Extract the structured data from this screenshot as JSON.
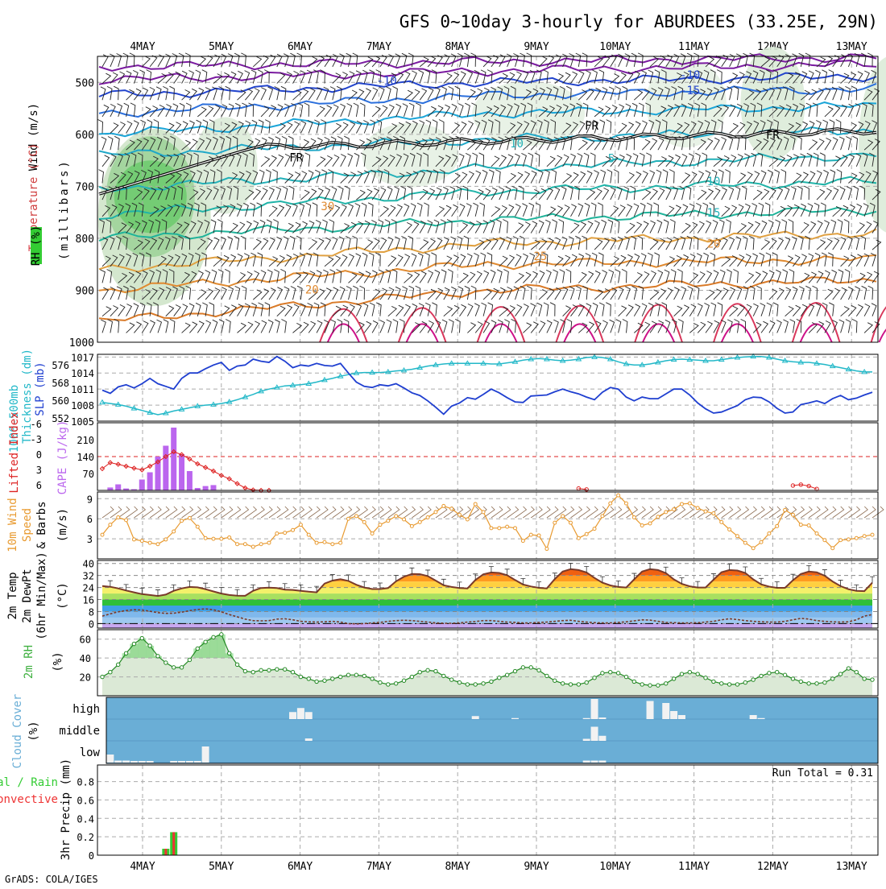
{
  "title": "GFS 0~10day 3-hourly for ABURDEES (33.25E, 29N)",
  "footer": "GrADS: COLA/IGES",
  "days": [
    "4MAY",
    "5MAY",
    "6MAY",
    "7MAY",
    "8MAY",
    "9MAY",
    "10MAY",
    "11MAY",
    "12MAY",
    "13MAY"
  ],
  "colors": {
    "slp": "#1f3fd0",
    "thickness": "#22b8c8",
    "lifted": "#dd2222",
    "cape": "#bb66ee",
    "wind10": "#e89a30",
    "temp": "#7a3a2a",
    "dewpt": "#7a3a2a",
    "rh2m": "#3fb040",
    "cloud_bg": "#6aaed6",
    "rain_total": "#33cc33",
    "rain_conv": "#ee3333"
  },
  "chart_data": [
    {
      "panel": "upper_air",
      "type": "contour",
      "ylabel": "Wind (m/s)  Temperature (°C)  RH (%)",
      "yunit": "(millibars)",
      "yticks": [
        "500",
        "600",
        "700",
        "800",
        "900",
        "1000"
      ],
      "ylim": [
        1000,
        450
      ],
      "contour_labels": [
        {
          "text": "-10",
          "day": 3.1,
          "p": 504
        },
        {
          "text": "-10",
          "day": 6.95,
          "p": 493
        },
        {
          "text": "-15",
          "day": 6.95,
          "p": 523
        },
        {
          "text": "FR",
          "day": 5.7,
          "p": 591
        },
        {
          "text": "FR",
          "day": 8.0,
          "p": 609
        },
        {
          "text": "FR",
          "day": 1.95,
          "p": 652
        },
        {
          "text": "10",
          "day": 4.75,
          "p": 625
        },
        {
          "text": "5",
          "day": 5.95,
          "p": 654
        },
        {
          "text": "10",
          "day": 7.25,
          "p": 698
        },
        {
          "text": "15",
          "day": 7.25,
          "p": 758
        },
        {
          "text": "20",
          "day": 7.25,
          "p": 818
        },
        {
          "text": "25",
          "day": 5.05,
          "p": 842
        },
        {
          "text": "30",
          "day": 2.35,
          "p": 746
        },
        {
          "text": "20",
          "day": 2.15,
          "p": 906
        }
      ]
    },
    {
      "panel": "slp_thickness",
      "type": "line",
      "left_label": "1000-500mb Thickness (dm)",
      "right_label": "SLP (mb)",
      "thickness_ticks": [
        "576",
        "568",
        "560",
        "552"
      ],
      "slp_ticks": [
        "1017",
        "1014",
        "1011",
        "1008",
        "1005"
      ],
      "ylim_slp": [
        1005,
        1017.5
      ],
      "series": [
        {
          "name": "SLP",
          "values": [
            1010.8,
            1010.2,
            1011.4,
            1011.8,
            1011.2,
            1012.0,
            1013.0,
            1012.0,
            1011.5,
            1011.0,
            1013.0,
            1014.0,
            1014.0,
            1014.8,
            1015.5,
            1016.0,
            1014.5,
            1015.3,
            1015.5,
            1016.6,
            1016.2,
            1016.0,
            1017.1,
            1016.2,
            1015.0,
            1015.5,
            1015.3,
            1015.8,
            1015.4,
            1015.3,
            1015.8,
            1014.0,
            1012.3,
            1011.5,
            1011.3,
            1011.8,
            1011.6,
            1012.0,
            1011.2,
            1010.3,
            1009.8,
            1008.8,
            1007.6,
            1006.3,
            1007.8,
            1008.4,
            1009.4,
            1009.1,
            1010.0,
            1011.0,
            1010.3,
            1009.4,
            1008.6,
            1008.5,
            1009.7,
            1009.8,
            1009.9,
            1010.5,
            1011.0,
            1010.5,
            1010.1,
            1009.5,
            1009.0,
            1010.4,
            1011.3,
            1011.0,
            1009.5,
            1008.8,
            1009.5,
            1009.2,
            1009.2,
            1010.1,
            1011.0,
            1011.0,
            1009.9,
            1008.4,
            1007.3,
            1006.5,
            1006.7,
            1007.3,
            1007.9,
            1009.0,
            1009.5,
            1009.4,
            1008.6,
            1007.4,
            1006.5,
            1006.7,
            1008.1,
            1008.4,
            1008.8,
            1008.3,
            1009.2,
            1009.8,
            1009.0,
            1009.3,
            1009.9,
            1010.4
          ]
        },
        {
          "name": "1000-500mb Thickness",
          "values": [
            1008.5,
            1008.3,
            1008.1,
            1007.8,
            1007.4,
            1007.0,
            1006.6,
            1006.2,
            1006.5,
            1006.9,
            1007.2,
            1007.5,
            1007.8,
            1008.0,
            1008.1,
            1008.3,
            1008.6,
            1009.0,
            1009.5,
            1010.0,
            1010.6,
            1011.0,
            1011.3,
            1011.6,
            1011.7,
            1011.8,
            1012.0,
            1012.3,
            1012.7,
            1013.0,
            1013.4,
            1013.7,
            1014.0,
            1014.1,
            1014.1,
            1014.1,
            1014.2,
            1014.4,
            1014.5,
            1014.7,
            1015.0,
            1015.3,
            1015.5,
            1015.7,
            1015.8,
            1015.8,
            1015.8,
            1015.8,
            1015.8,
            1015.7,
            1015.7,
            1015.9,
            1016.1,
            1016.4,
            1016.6,
            1016.7,
            1016.6,
            1016.4,
            1016.3,
            1016.4,
            1016.6,
            1016.9,
            1017.0,
            1016.9,
            1016.6,
            1016.1,
            1015.7,
            1015.5,
            1015.5,
            1015.7,
            1016.0,
            1016.3,
            1016.5,
            1016.6,
            1016.5,
            1016.4,
            1016.3,
            1016.3,
            1016.5,
            1016.7,
            1016.9,
            1017.0,
            1017.1,
            1017.1,
            1016.9,
            1016.6,
            1016.3,
            1016.1,
            1016.0,
            1016.0,
            1015.8,
            1015.6,
            1015.3,
            1015.0,
            1014.7,
            1014.4,
            1014.2,
            1014.2
          ]
        }
      ]
    },
    {
      "panel": "cape_li",
      "type": "bar+line",
      "left_label": "Lifted Index",
      "right_label": "CAPE (J/kg)",
      "li_ticks": [
        "-6",
        "-3",
        "0",
        "3",
        "6"
      ],
      "cape_ticks": [
        "210",
        "140",
        "70"
      ],
      "ylim_cape": [
        0,
        280
      ],
      "cape_bars": [
        {
          "i": 1,
          "v": 12
        },
        {
          "i": 2,
          "v": 25
        },
        {
          "i": 3,
          "v": 8
        },
        {
          "i": 4,
          "v": 5
        },
        {
          "i": 5,
          "v": 45
        },
        {
          "i": 6,
          "v": 75
        },
        {
          "i": 7,
          "v": 140
        },
        {
          "i": 8,
          "v": 185
        },
        {
          "i": 9,
          "v": 260
        },
        {
          "i": 10,
          "v": 150
        },
        {
          "i": 11,
          "v": 80
        },
        {
          "i": 12,
          "v": 10
        },
        {
          "i": 13,
          "v": 18
        },
        {
          "i": 14,
          "v": 22
        }
      ],
      "lifted_index_cape_scale": [
        90,
        115,
        108,
        100,
        92,
        85,
        100,
        118,
        140,
        160,
        148,
        130,
        110,
        95,
        80,
        62,
        48,
        28,
        10,
        2,
        0,
        0,
        0,
        0,
        0,
        0,
        0,
        0,
        0,
        0,
        0,
        0,
        0,
        0,
        0,
        0,
        0,
        0,
        0,
        0,
        0,
        0,
        0,
        0,
        0,
        0,
        0,
        0,
        0,
        0,
        0,
        0,
        0,
        0,
        0,
        0,
        0,
        0,
        0,
        0,
        0,
        0,
        0,
        0,
        0,
        0,
        0,
        0,
        0,
        0,
        0,
        0,
        0,
        0,
        0,
        0,
        0,
        0,
        0,
        0,
        0,
        0,
        0,
        0,
        0,
        0,
        0,
        0,
        0,
        0,
        0,
        0,
        0,
        0,
        0,
        0,
        0,
        0
      ]
    },
    {
      "panel": "wind10m",
      "type": "line",
      "left_label": "10m Wind Speed & Barbs",
      "unit": "(m/s)",
      "yticks": [
        "9",
        "6",
        "3"
      ],
      "ylim": [
        0,
        10
      ],
      "values": [
        3.6,
        5.1,
        6.2,
        5.8,
        2.9,
        2.7,
        2.4,
        2.2,
        2.9,
        4.1,
        5.7,
        6.1,
        4.8,
        3.1,
        3.0,
        3.0,
        3.2,
        2.2,
        2.2,
        1.8,
        2.2,
        2.4,
        3.8,
        3.9,
        4.3,
        5.1,
        3.6,
        2.4,
        2.5,
        2.2,
        2.4,
        6.0,
        6.4,
        5.5,
        3.8,
        5.1,
        5.7,
        6.4,
        5.9,
        4.9,
        5.5,
        6.2,
        7.0,
        7.9,
        7.5,
        6.6,
        5.9,
        8.2,
        7.0,
        4.6,
        4.6,
        4.8,
        4.6,
        2.7,
        3.6,
        3.5,
        1.5,
        5.4,
        6.4,
        5.4,
        3.1,
        3.7,
        4.5,
        6.4,
        8.3,
        9.5,
        8.3,
        6.2,
        5.0,
        5.3,
        6.3,
        7.0,
        7.4,
        8.2,
        8.3,
        7.6,
        7.1,
        6.8,
        5.5,
        4.4,
        3.4,
        2.4,
        1.6,
        2.5,
        3.8,
        4.9,
        7.3,
        6.6,
        5.1,
        5.0,
        3.8,
        2.8,
        1.6,
        2.8,
        2.9,
        3.1,
        3.4,
        3.6
      ]
    },
    {
      "panel": "temp2m",
      "type": "line+area",
      "left_label": "2m Temp 2m DewPt (6hr Min/Max)",
      "unit": "(°C)",
      "yticks": [
        "40",
        "32",
        "24",
        "16",
        "8",
        "0"
      ],
      "ylim": [
        -3,
        42
      ],
      "temp": [
        25.0,
        24.5,
        23.4,
        22.0,
        20.8,
        19.6,
        19.0,
        18.4,
        19.3,
        21.8,
        23.4,
        24.4,
        24.1,
        22.9,
        21.4,
        20.0,
        19.0,
        18.6,
        18.5,
        21.8,
        23.7,
        23.9,
        23.6,
        22.6,
        22.4,
        21.8,
        21.2,
        20.8,
        26.6,
        28.6,
        29.5,
        28.4,
        25.8,
        24.0,
        23.0,
        23.0,
        23.6,
        28.1,
        31.2,
        33.0,
        32.9,
        31.6,
        28.6,
        25.5,
        24.4,
        23.6,
        23.4,
        29.0,
        32.8,
        34.0,
        33.7,
        32.2,
        29.0,
        26.0,
        24.7,
        23.8,
        23.4,
        29.6,
        34.6,
        36.2,
        35.6,
        34.0,
        30.4,
        27.2,
        25.4,
        24.4,
        24.0,
        29.4,
        34.6,
        36.2,
        35.6,
        33.6,
        29.4,
        26.4,
        24.8,
        24.0,
        24.0,
        29.2,
        34.1,
        35.6,
        35.3,
        33.7,
        29.4,
        26.1,
        24.6,
        23.8,
        23.8,
        28.8,
        33.0,
        34.6,
        34.1,
        31.8,
        28.0,
        24.9,
        22.9,
        21.8,
        21.6,
        27.2
      ],
      "dewpt": [
        5.0,
        6.5,
        7.8,
        8.7,
        9.2,
        9.0,
        8.2,
        7.3,
        6.8,
        6.9,
        7.6,
        8.6,
        9.4,
        9.8,
        9.2,
        7.8,
        6.0,
        4.5,
        3.0,
        2.0,
        1.8,
        2.0,
        3.0,
        3.2,
        2.5,
        1.5,
        1.2,
        1.0,
        1.2,
        1.5,
        1.0,
        0.0,
        -0.2,
        0.0,
        0.5,
        0.8,
        1.5,
        2.0,
        2.2,
        2.0,
        1.5,
        1.0,
        0.5,
        0.2,
        0.2,
        0.5,
        1.0,
        1.4,
        2.0,
        2.0,
        1.5,
        1.0,
        0.8,
        0.5,
        0.5,
        0.8,
        1.0,
        1.5,
        2.0,
        2.2,
        1.5,
        1.0,
        0.6,
        0.5,
        0.5,
        0.8,
        1.2,
        1.8,
        2.5,
        2.3,
        1.5,
        0.8,
        0.6,
        0.5,
        0.5,
        0.6,
        1.0,
        1.5,
        2.5,
        3.2,
        2.7,
        2.0,
        1.5,
        1.2,
        1.0,
        1.0,
        1.5,
        2.5,
        3.5,
        3.0,
        2.0,
        1.5,
        1.2,
        1.0,
        1.2,
        2.5,
        5.0,
        6.0
      ]
    },
    {
      "panel": "rh2m",
      "type": "area",
      "left_label": "2m RH",
      "unit": "(%)",
      "yticks": [
        "60",
        "40",
        "20"
      ],
      "ylim": [
        0,
        70
      ],
      "values": [
        20,
        25,
        33,
        45,
        55,
        61,
        53,
        42,
        35,
        30,
        30,
        38,
        50,
        57,
        62,
        65,
        45,
        33,
        26,
        25,
        27,
        27,
        28,
        28,
        25,
        20,
        18,
        15,
        16,
        18,
        20,
        22,
        22,
        21,
        18,
        14,
        12,
        13,
        16,
        20,
        25,
        27,
        26,
        21,
        17,
        14,
        12,
        12,
        13,
        15,
        19,
        22,
        26,
        30,
        30,
        27,
        21,
        16,
        13,
        12,
        12,
        14,
        19,
        24,
        25,
        24,
        20,
        15,
        12,
        11,
        11,
        13,
        18,
        23,
        25,
        23,
        19,
        15,
        13,
        12,
        12,
        14,
        17,
        21,
        24,
        25,
        22,
        18,
        15,
        13,
        13,
        14,
        18,
        23,
        29,
        25,
        18,
        17
      ]
    },
    {
      "panel": "cloud_cover",
      "type": "bar",
      "left_label": "Cloud Cover",
      "unit": "(%)",
      "yticks": [
        "high",
        "middle",
        "low"
      ],
      "high": [
        {
          "i": 24,
          "v": 35
        },
        {
          "i": 25,
          "v": 55
        },
        {
          "i": 26,
          "v": 35
        },
        {
          "i": 47,
          "v": 15
        },
        {
          "i": 52,
          "v": 5
        },
        {
          "i": 61,
          "v": 5
        },
        {
          "i": 62,
          "v": 100
        },
        {
          "i": 63,
          "v": 8
        },
        {
          "i": 69,
          "v": 90
        },
        {
          "i": 71,
          "v": 80
        },
        {
          "i": 72,
          "v": 40
        },
        {
          "i": 73,
          "v": 20
        },
        {
          "i": 82,
          "v": 20
        },
        {
          "i": 83,
          "v": 5
        }
      ],
      "middle": [
        {
          "i": 26,
          "v": 12
        },
        {
          "i": 61,
          "v": 10
        },
        {
          "i": 62,
          "v": 70
        },
        {
          "i": 63,
          "v": 25
        }
      ],
      "low": [
        {
          "i": 1,
          "v": 40
        },
        {
          "i": 2,
          "v": 10
        },
        {
          "i": 3,
          "v": 10
        },
        {
          "i": 4,
          "v": 8
        },
        {
          "i": 5,
          "v": 8
        },
        {
          "i": 6,
          "v": 8
        },
        {
          "i": 9,
          "v": 8
        },
        {
          "i": 10,
          "v": 8
        },
        {
          "i": 11,
          "v": 8
        },
        {
          "i": 12,
          "v": 8
        },
        {
          "i": 13,
          "v": 80
        },
        {
          "i": 61,
          "v": 10
        },
        {
          "i": 62,
          "v": 10
        },
        {
          "i": 63,
          "v": 10
        }
      ]
    },
    {
      "panel": "precip",
      "type": "bar",
      "left_label_total": "Total / Rain",
      "left_label_conv": "Convective",
      "ylabel": "3hr Precip (mm)",
      "yticks": [
        "0.8",
        "0.6",
        "0.4",
        "0.2",
        "0"
      ],
      "ylim": [
        0,
        0.98
      ],
      "run_total": "Run Total = 0.31",
      "bars": [
        {
          "i": 8,
          "total": 0.07,
          "conv": 0.07
        },
        {
          "i": 9,
          "total": 0.25,
          "conv": 0.25
        }
      ]
    }
  ]
}
